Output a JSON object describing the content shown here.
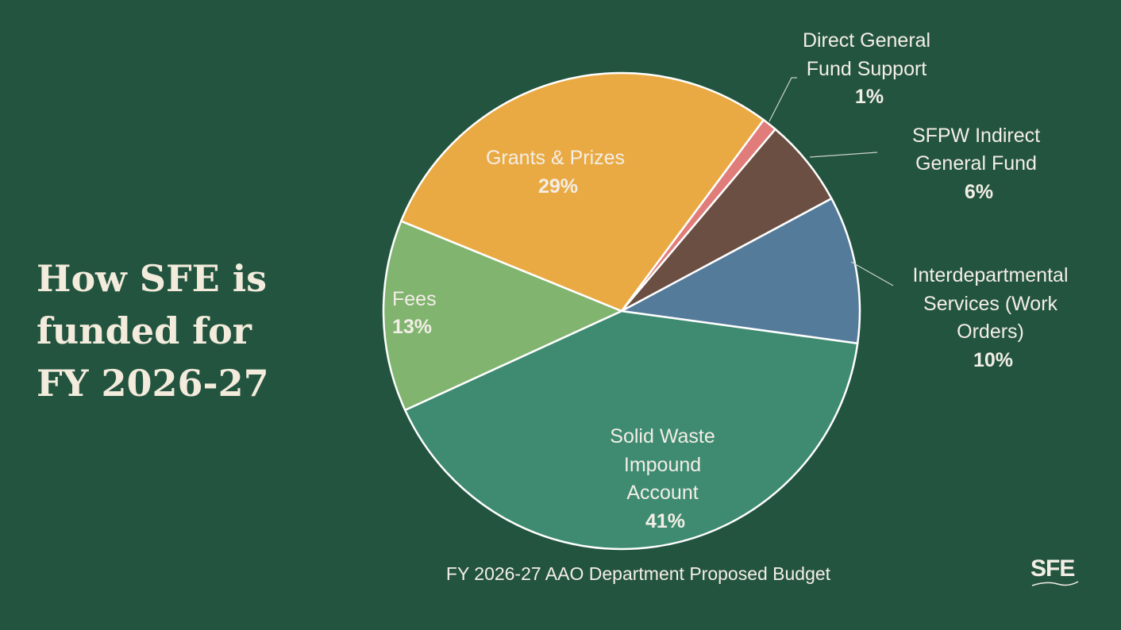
{
  "title": [
    "How SFE is",
    "funded for",
    "FY 2026-27"
  ],
  "logo_text": "SFE",
  "chart_data": {
    "type": "pie",
    "caption": "FY 2026-27 AAO Department Proposed Budget",
    "start_angle_deg": 7.8,
    "direction": "clockwise",
    "slices": [
      {
        "name": "Solid Waste Impound Account",
        "lines": [
          "Solid Waste",
          "Impound",
          "Account"
        ],
        "value": 41,
        "label": "41%",
        "color": "#3E8B71"
      },
      {
        "name": "Fees",
        "lines": [
          "Fees"
        ],
        "value": 13,
        "label": "13%",
        "color": "#80B46F"
      },
      {
        "name": "Grants & Prizes",
        "lines": [
          "Grants & Prizes"
        ],
        "value": 29,
        "label": "29%",
        "color": "#EAAA43"
      },
      {
        "name": "Direct General Fund Support",
        "lines": [
          "Direct General",
          "Fund Support"
        ],
        "value": 1,
        "label": "1%",
        "color": "#E07C7A"
      },
      {
        "name": "SFPW Indirect General Fund",
        "lines": [
          "SFPW Indirect",
          "General Fund"
        ],
        "value": 6,
        "label": "6%",
        "color": "#6B4F42"
      },
      {
        "name": "Interdepartmental Services (Work Orders)",
        "lines": [
          "Interdepartmental",
          "Services (Work",
          "Orders)"
        ],
        "value": 10,
        "label": "10%",
        "color": "#557B9B"
      }
    ]
  }
}
